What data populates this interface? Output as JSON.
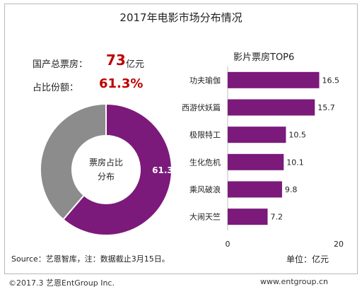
{
  "chart_title": "2017年电影市场分布情况",
  "metrics": {
    "total_label": "国产总票房：",
    "total_value": "73",
    "total_unit": "亿元",
    "share_label": "占比份额：",
    "share_value": "61.3%"
  },
  "colors": {
    "accent": "#7b1a7a",
    "gray": "#8c8c8c",
    "highlight": "#c00000"
  },
  "chart_data": [
    {
      "type": "pie",
      "center_label_line1": "票房占比",
      "center_label_line2": "分布",
      "slices": [
        {
          "label": "61.3%",
          "value": 61.3,
          "color": "#7b1a7a"
        },
        {
          "value": 38.7,
          "color": "#8c8c8c"
        }
      ]
    },
    {
      "type": "bar",
      "orientation": "horizontal",
      "title": "影片票房TOP6",
      "categories": [
        "功夫瑜伽",
        "西游伏妖篇",
        "极限特工",
        "生化危机",
        "乘风破浪",
        "大闹天竺"
      ],
      "values": [
        16.5,
        15.7,
        10.5,
        10.1,
        9.8,
        7.2
      ],
      "xlim": [
        0,
        20
      ],
      "xticks": [
        "0",
        "20"
      ],
      "color": "#7b1a7a"
    }
  ],
  "source_note": "Source：艺恩智库，注：数据截止3月15日。",
  "unit_note": "单位：亿元",
  "footer": {
    "left": "©2017.3 艺恩EntGroup Inc.",
    "right": "www.entgroup.cn"
  }
}
